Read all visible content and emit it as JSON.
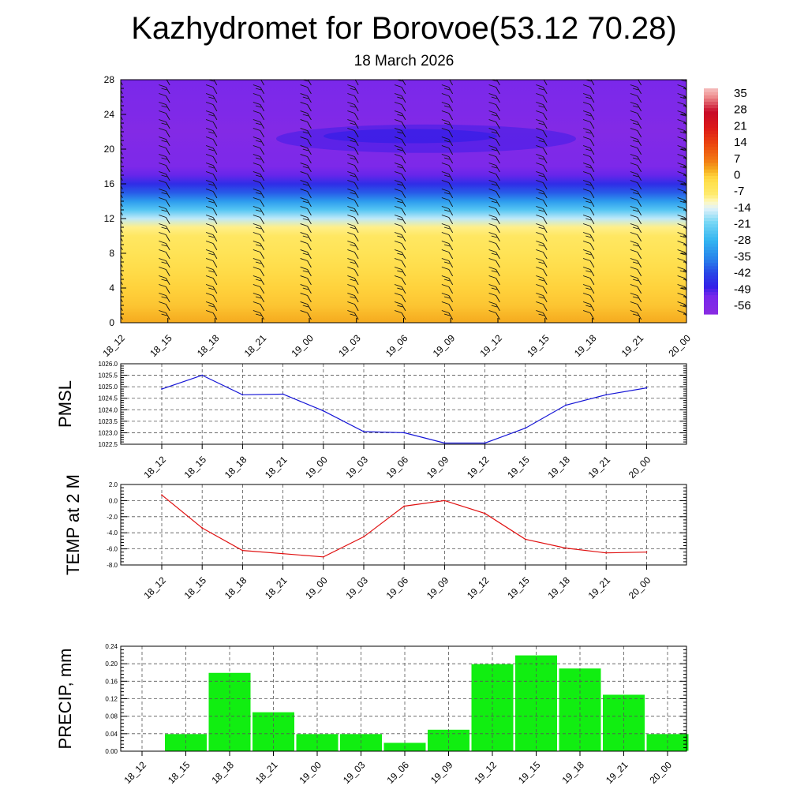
{
  "title": "Kazhydromet for Borovoe(53.12 70.28)",
  "subtitle": "18 March 2026",
  "time_labels": [
    "18_12",
    "18_15",
    "18_18",
    "18_21",
    "19_00",
    "19_03",
    "19_06",
    "19_09",
    "19_12",
    "19_15",
    "19_18",
    "19_21",
    "20_00"
  ],
  "chart_data": [
    {
      "type": "heatmap",
      "name": "temperature-wind-cross-section",
      "title": "",
      "x": [
        "18_12",
        "18_15",
        "18_18",
        "18_21",
        "19_00",
        "19_03",
        "19_06",
        "19_09",
        "19_12",
        "19_15",
        "19_18",
        "19_21",
        "20_00"
      ],
      "ylim": [
        0,
        28
      ],
      "yticks": [
        "0",
        "4",
        "8",
        "12",
        "16",
        "20",
        "24",
        "28"
      ],
      "colorbar": {
        "labels": [
          "35",
          "28",
          "21",
          "14",
          "7",
          "0",
          "-7",
          "-14",
          "-21",
          "-28",
          "-35",
          "-42",
          "-49",
          "-56"
        ],
        "range": [
          -60,
          38
        ],
        "colors": {
          "cold": "#8a2be2",
          "deep": "#2d1ee8",
          "blue": "#2a7be8",
          "cyan": "#38c8f0",
          "pale": "#e8f4fa",
          "yellow": "#ffe14f",
          "orange": "#f5a623",
          "red": "#d81e1e",
          "pink": "#f2b8b8"
        }
      },
      "level_temps": {
        "levels": [
          0,
          2,
          4,
          6,
          8,
          10,
          11,
          12,
          13,
          14,
          15,
          16,
          17,
          18,
          20,
          22,
          24,
          26,
          28
        ],
        "temps": [
          3,
          1,
          0,
          -2,
          -4,
          -6,
          -9,
          -16,
          -24,
          -32,
          -40,
          -46,
          -51,
          -54,
          -55,
          -57,
          -55,
          -54,
          -53
        ]
      },
      "wind_barbs": "black wind barbs at every time step and level"
    },
    {
      "type": "line",
      "name": "pmsl",
      "ylabel": "PMSL",
      "x": [
        "18_12",
        "18_15",
        "18_18",
        "18_21",
        "19_00",
        "19_03",
        "19_06",
        "19_09",
        "19_12",
        "19_15",
        "19_18",
        "19_21",
        "20_00"
      ],
      "values": [
        1024.9,
        1025.5,
        1024.65,
        1024.68,
        1023.95,
        1023.05,
        1023.0,
        1022.55,
        1022.55,
        1023.2,
        1024.2,
        1024.65,
        1024.95
      ],
      "ylim": [
        1022.5,
        1026.0
      ],
      "yticks": [
        "1022.5",
        "1023.0",
        "1023.5",
        "1024.0",
        "1024.5",
        "1025.0",
        "1025.5",
        "1026.0"
      ],
      "color": "#1515d6"
    },
    {
      "type": "line",
      "name": "temp-2m",
      "ylabel": "TEMP at 2 M",
      "x": [
        "18_12",
        "18_15",
        "18_18",
        "18_21",
        "19_00",
        "19_03",
        "19_06",
        "19_09",
        "19_12",
        "19_15",
        "19_18",
        "19_21",
        "20_00"
      ],
      "values": [
        0.7,
        -3.4,
        -6.2,
        -6.6,
        -7.0,
        -4.5,
        -0.7,
        0.0,
        -1.6,
        -4.8,
        -5.9,
        -6.5,
        -6.4
      ],
      "ylim": [
        -8.0,
        2.0
      ],
      "yticks": [
        "-8.0",
        "-6.0",
        "-4.0",
        "-2.0",
        "0.0",
        "2.0"
      ],
      "color": "#e01010"
    },
    {
      "type": "bar",
      "name": "precip",
      "ylabel": "PRECIP, mm",
      "categories": [
        "18_12",
        "18_15",
        "18_18",
        "18_21",
        "19_00",
        "19_03",
        "19_06",
        "19_09",
        "19_12",
        "19_15",
        "19_18",
        "19_21",
        "20_00"
      ],
      "values": [
        0.0,
        0.04,
        0.18,
        0.09,
        0.04,
        0.04,
        0.02,
        0.05,
        0.2,
        0.22,
        0.19,
        0.13,
        0.04
      ],
      "ylim": [
        0.0,
        0.24
      ],
      "yticks": [
        "0.00",
        "0.04",
        "0.08",
        "0.12",
        "0.16",
        "0.20",
        "0.24"
      ],
      "color": "#11ee11"
    }
  ]
}
